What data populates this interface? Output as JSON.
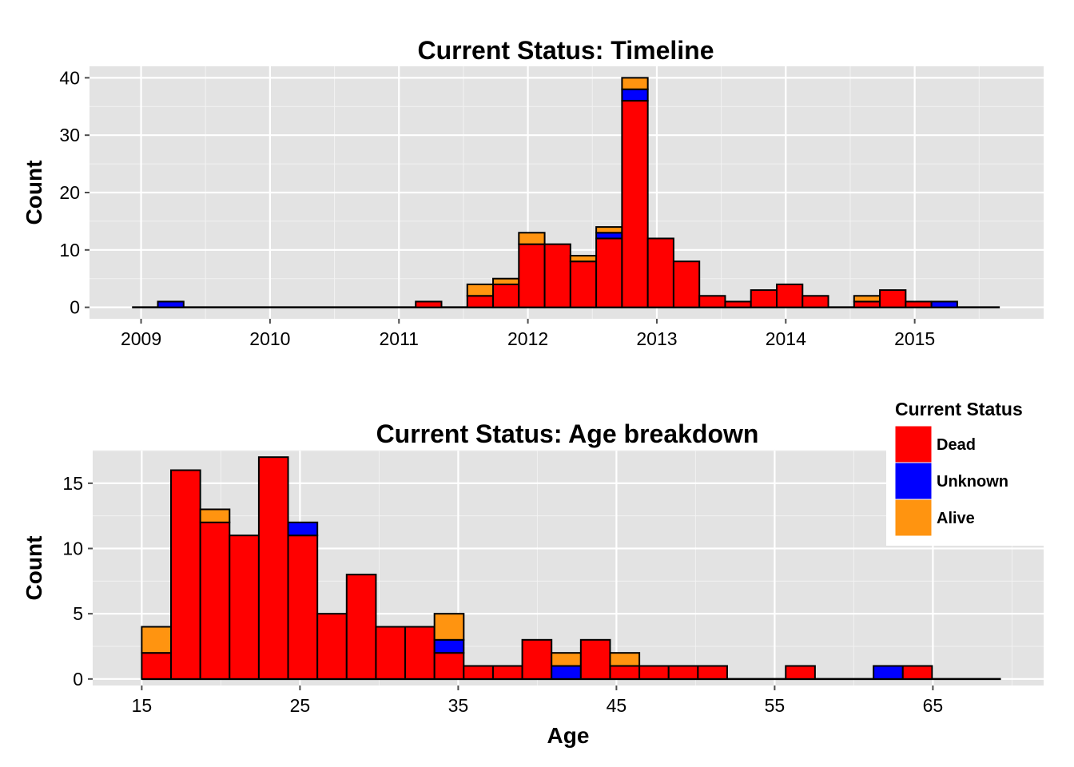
{
  "status_colors": {
    "Dead": "#ff0000",
    "Unknown": "#0000ff",
    "Alive": "#ff9410"
  },
  "legend": {
    "title": "Current Status",
    "items": [
      {
        "label": "Dead",
        "color": "#ff0000"
      },
      {
        "label": "Unknown",
        "color": "#0000ff"
      },
      {
        "label": "Alive",
        "color": "#ff9410"
      }
    ]
  },
  "chart_data": [
    {
      "type": "bar",
      "stacked": true,
      "title": "Current Status: Timeline",
      "xlabel": "",
      "ylabel": "Count",
      "x_unit": "year",
      "xlim": [
        2008.6,
        2016.0
      ],
      "ylim": [
        -2,
        42
      ],
      "x_range_drawn": [
        2008.93,
        2015.66
      ],
      "bin_width": 0.2,
      "x_ticks": [
        "2009",
        "2010",
        "2011",
        "2012",
        "2013",
        "2014",
        "2015"
      ],
      "y_ticks": [
        "0",
        "10",
        "20",
        "30",
        "40"
      ],
      "grid": true,
      "stack_order": [
        "Dead",
        "Unknown",
        "Alive"
      ],
      "bins": [
        {
          "x0": 2009.13,
          "Dead": 0,
          "Unknown": 1,
          "Alive": 0
        },
        {
          "x0": 2011.13,
          "Dead": 1,
          "Unknown": 0,
          "Alive": 0
        },
        {
          "x0": 2011.53,
          "Dead": 2,
          "Unknown": 0,
          "Alive": 2
        },
        {
          "x0": 2011.73,
          "Dead": 4,
          "Unknown": 0,
          "Alive": 1
        },
        {
          "x0": 2011.93,
          "Dead": 11,
          "Unknown": 0,
          "Alive": 2
        },
        {
          "x0": 2012.13,
          "Dead": 11,
          "Unknown": 0,
          "Alive": 0
        },
        {
          "x0": 2012.33,
          "Dead": 8,
          "Unknown": 0,
          "Alive": 1
        },
        {
          "x0": 2012.53,
          "Dead": 12,
          "Unknown": 1,
          "Alive": 1
        },
        {
          "x0": 2012.73,
          "Dead": 36,
          "Unknown": 2,
          "Alive": 2
        },
        {
          "x0": 2012.93,
          "Dead": 12,
          "Unknown": 0,
          "Alive": 0
        },
        {
          "x0": 2013.13,
          "Dead": 8,
          "Unknown": 0,
          "Alive": 0
        },
        {
          "x0": 2013.33,
          "Dead": 2,
          "Unknown": 0,
          "Alive": 0
        },
        {
          "x0": 2013.53,
          "Dead": 1,
          "Unknown": 0,
          "Alive": 0
        },
        {
          "x0": 2013.73,
          "Dead": 3,
          "Unknown": 0,
          "Alive": 0
        },
        {
          "x0": 2013.93,
          "Dead": 4,
          "Unknown": 0,
          "Alive": 0
        },
        {
          "x0": 2014.13,
          "Dead": 2,
          "Unknown": 0,
          "Alive": 0
        },
        {
          "x0": 2014.53,
          "Dead": 1,
          "Unknown": 0,
          "Alive": 1
        },
        {
          "x0": 2014.73,
          "Dead": 3,
          "Unknown": 0,
          "Alive": 0
        },
        {
          "x0": 2014.93,
          "Dead": 1,
          "Unknown": 0,
          "Alive": 0
        },
        {
          "x0": 2015.13,
          "Dead": 0,
          "Unknown": 1,
          "Alive": 0
        }
      ]
    },
    {
      "type": "bar",
      "stacked": true,
      "title": "Current Status: Age breakdown",
      "xlabel": "Age",
      "ylabel": "Count",
      "xlim": [
        11.9,
        72.0
      ],
      "ylim": [
        -0.5,
        17.5
      ],
      "x_range_drawn": [
        15,
        69.3
      ],
      "bin_width": 1.85,
      "x_ticks": [
        "15",
        "25",
        "35",
        "45",
        "55",
        "65"
      ],
      "y_ticks": [
        "0",
        "5",
        "10",
        "15"
      ],
      "grid": true,
      "stack_order": [
        "Dead",
        "Unknown",
        "Alive"
      ],
      "bins": [
        {
          "x0": 15.0,
          "Dead": 2,
          "Unknown": 0,
          "Alive": 2
        },
        {
          "x0": 16.85,
          "Dead": 16,
          "Unknown": 0,
          "Alive": 0
        },
        {
          "x0": 18.7,
          "Dead": 12,
          "Unknown": 0,
          "Alive": 1
        },
        {
          "x0": 20.55,
          "Dead": 11,
          "Unknown": 0,
          "Alive": 0
        },
        {
          "x0": 22.4,
          "Dead": 17,
          "Unknown": 0,
          "Alive": 0
        },
        {
          "x0": 24.25,
          "Dead": 11,
          "Unknown": 1,
          "Alive": 0
        },
        {
          "x0": 26.1,
          "Dead": 5,
          "Unknown": 0,
          "Alive": 0
        },
        {
          "x0": 27.95,
          "Dead": 8,
          "Unknown": 0,
          "Alive": 0
        },
        {
          "x0": 29.8,
          "Dead": 4,
          "Unknown": 0,
          "Alive": 0
        },
        {
          "x0": 31.65,
          "Dead": 4,
          "Unknown": 0,
          "Alive": 0
        },
        {
          "x0": 33.5,
          "Dead": 2,
          "Unknown": 1,
          "Alive": 2
        },
        {
          "x0": 35.35,
          "Dead": 1,
          "Unknown": 0,
          "Alive": 0
        },
        {
          "x0": 37.2,
          "Dead": 1,
          "Unknown": 0,
          "Alive": 0
        },
        {
          "x0": 39.05,
          "Dead": 3,
          "Unknown": 0,
          "Alive": 0
        },
        {
          "x0": 40.9,
          "Dead": 0,
          "Unknown": 1,
          "Alive": 1
        },
        {
          "x0": 42.75,
          "Dead": 3,
          "Unknown": 0,
          "Alive": 0
        },
        {
          "x0": 44.6,
          "Dead": 1,
          "Unknown": 0,
          "Alive": 1
        },
        {
          "x0": 46.45,
          "Dead": 1,
          "Unknown": 0,
          "Alive": 0
        },
        {
          "x0": 48.3,
          "Dead": 1,
          "Unknown": 0,
          "Alive": 0
        },
        {
          "x0": 50.15,
          "Dead": 1,
          "Unknown": 0,
          "Alive": 0
        },
        {
          "x0": 55.7,
          "Dead": 1,
          "Unknown": 0,
          "Alive": 0
        },
        {
          "x0": 61.25,
          "Dead": 0,
          "Unknown": 1,
          "Alive": 0
        },
        {
          "x0": 63.1,
          "Dead": 1,
          "Unknown": 0,
          "Alive": 0
        }
      ]
    }
  ]
}
